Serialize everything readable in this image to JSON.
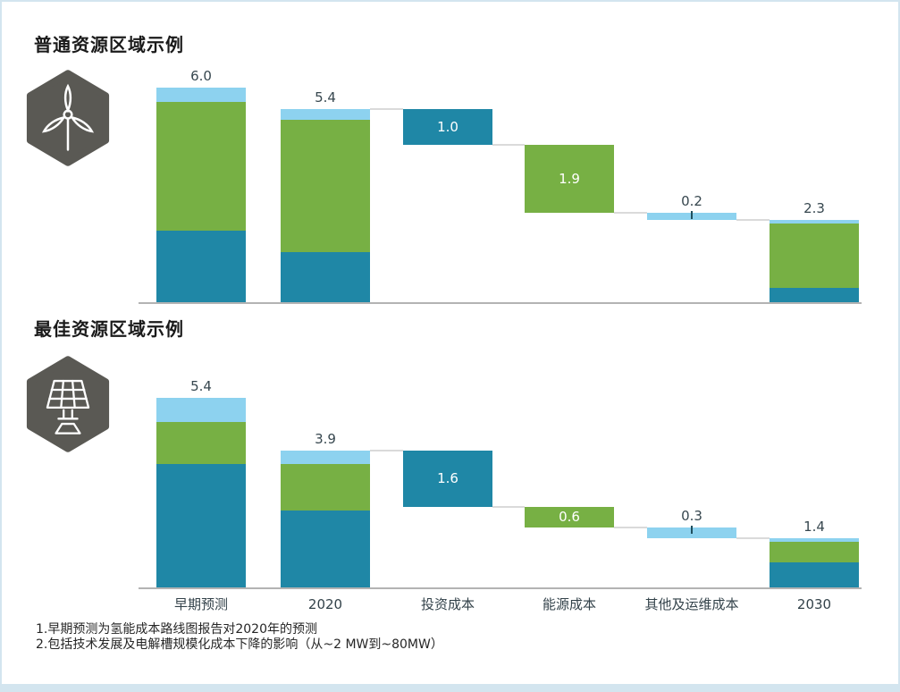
{
  "frame": {
    "border_color": "#d3e5ef",
    "background": "#ffffff"
  },
  "colors": {
    "teal": "#1f87a6",
    "green": "#77b044",
    "light_blue": "#8dd2ef",
    "axis": "#b3b3b3",
    "connector": "#dadada",
    "value_label": "#37474f",
    "inside_label": "#ffffff",
    "tick": "#1f4f5e",
    "icon_bg": "#5a5954",
    "icon_stroke": "#ffffff"
  },
  "footnotes": [
    "1.早期预测为氢能成本路线图报告对2020年的预测",
    "2.包括技术发展及电解槽规模化成本下降的影响（从~2 MW到~80MW）"
  ],
  "chart_data": [
    {
      "type": "waterfall-stacked-bar",
      "title": "普通资源区域示例",
      "icon": "wind-turbine-icon",
      "categories": [
        "早期预测",
        "2020",
        "投资成本",
        "能源成本",
        "其他及运维成本",
        "2030"
      ],
      "totals": [
        6.0,
        5.4,
        1.0,
        1.9,
        0.2,
        2.3
      ],
      "ylim": [
        0,
        6.5
      ],
      "grid": false,
      "legend": "none",
      "show_x_labels": false,
      "columns": [
        {
          "category": "早期预测",
          "kind": "stack",
          "label": "6.0",
          "label_pos": "above",
          "segments_bottom_to_top": [
            {
              "color": "teal",
              "value": 2.0
            },
            {
              "color": "green",
              "value": 3.6
            },
            {
              "color": "light_blue",
              "value": 0.4
            }
          ]
        },
        {
          "category": "2020",
          "kind": "stack",
          "label": "5.4",
          "label_pos": "above",
          "segments_bottom_to_top": [
            {
              "color": "teal",
              "value": 1.4
            },
            {
              "color": "green",
              "value": 3.7
            },
            {
              "color": "light_blue",
              "value": 0.3
            }
          ]
        },
        {
          "category": "投资成本",
          "kind": "float",
          "color": "teal",
          "top_level": 5.4,
          "value": 1.0,
          "label": "1.0",
          "label_pos": "inside"
        },
        {
          "category": "能源成本",
          "kind": "float",
          "color": "green",
          "top_level": 4.4,
          "value": 1.9,
          "label": "1.9",
          "label_pos": "inside"
        },
        {
          "category": "其他及运维成本",
          "kind": "float",
          "color": "light_blue",
          "top_level": 2.5,
          "value": 0.2,
          "label": "0.2",
          "label_pos": "above",
          "tick": true
        },
        {
          "category": "2030",
          "kind": "stack",
          "label": "2.3",
          "label_pos": "above",
          "segments_bottom_to_top": [
            {
              "color": "teal",
              "value": 0.4
            },
            {
              "color": "green",
              "value": 1.8
            },
            {
              "color": "light_blue",
              "value": 0.1
            }
          ]
        }
      ],
      "connectors": [
        {
          "from_col": 1,
          "to_col": 2,
          "level": 5.4
        },
        {
          "from_col": 2,
          "to_col": 3,
          "level": 4.4
        },
        {
          "from_col": 3,
          "to_col": 4,
          "level": 2.5
        },
        {
          "from_col": 4,
          "to_col": 5,
          "level": 2.3
        }
      ]
    },
    {
      "type": "waterfall-stacked-bar",
      "title": "最佳资源区域示例",
      "icon": "solar-panel-icon",
      "categories": [
        "早期预测",
        "2020",
        "投资成本",
        "能源成本",
        "其他及运维成本",
        "2030"
      ],
      "totals": [
        5.4,
        3.9,
        1.6,
        0.6,
        0.3,
        1.4
      ],
      "ylim": [
        0,
        6.0
      ],
      "grid": false,
      "legend": "none",
      "show_x_labels": true,
      "columns": [
        {
          "category": "早期预测",
          "kind": "stack",
          "label": "5.4",
          "label_pos": "above",
          "segments_bottom_to_top": [
            {
              "color": "teal",
              "value": 3.5
            },
            {
              "color": "green",
              "value": 1.2
            },
            {
              "color": "light_blue",
              "value": 0.7
            }
          ]
        },
        {
          "category": "2020",
          "kind": "stack",
          "label": "3.9",
          "label_pos": "above",
          "segments_bottom_to_top": [
            {
              "color": "teal",
              "value": 2.2
            },
            {
              "color": "green",
              "value": 1.3
            },
            {
              "color": "light_blue",
              "value": 0.4
            }
          ]
        },
        {
          "category": "投资成本",
          "kind": "float",
          "color": "teal",
          "top_level": 3.9,
          "value": 1.6,
          "label": "1.6",
          "label_pos": "inside"
        },
        {
          "category": "能源成本",
          "kind": "float",
          "color": "green",
          "top_level": 2.3,
          "value": 0.6,
          "label": "0.6",
          "label_pos": "inside"
        },
        {
          "category": "其他及运维成本",
          "kind": "float",
          "color": "light_blue",
          "top_level": 1.7,
          "value": 0.3,
          "label": "0.3",
          "label_pos": "above",
          "tick": true
        },
        {
          "category": "2030",
          "kind": "stack",
          "label": "1.4",
          "label_pos": "above",
          "segments_bottom_to_top": [
            {
              "color": "teal",
              "value": 0.7
            },
            {
              "color": "green",
              "value": 0.6
            },
            {
              "color": "light_blue",
              "value": 0.1
            }
          ]
        }
      ],
      "connectors": [
        {
          "from_col": 1,
          "to_col": 2,
          "level": 3.9
        },
        {
          "from_col": 2,
          "to_col": 3,
          "level": 2.3
        },
        {
          "from_col": 3,
          "to_col": 4,
          "level": 1.7
        },
        {
          "from_col": 4,
          "to_col": 5,
          "level": 1.4
        }
      ]
    }
  ]
}
